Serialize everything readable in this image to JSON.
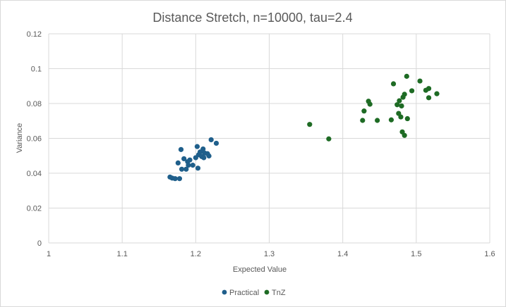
{
  "chart_data": {
    "type": "scatter",
    "title": "Distance Stretch, n=10000, tau=2.4",
    "xlabel": "Expected Value",
    "ylabel": "Variance",
    "xlim": [
      1,
      1.6
    ],
    "ylim": [
      0,
      0.12
    ],
    "x_ticks": [
      "1",
      "1.1",
      "1.2",
      "1.3",
      "1.4",
      "1.5",
      "1.6"
    ],
    "y_ticks": [
      "0",
      "0.02",
      "0.04",
      "0.06",
      "0.08",
      "0.1",
      "0.12"
    ],
    "grid": true,
    "legend_position": "bottom",
    "series": [
      {
        "name": "Practical",
        "color": "#1f5f8b",
        "points": [
          [
            1.165,
            0.0378
          ],
          [
            1.168,
            0.0372
          ],
          [
            1.172,
            0.0369
          ],
          [
            1.178,
            0.0369
          ],
          [
            1.176,
            0.0459
          ],
          [
            1.18,
            0.0536
          ],
          [
            1.181,
            0.0423
          ],
          [
            1.184,
            0.0483
          ],
          [
            1.187,
            0.0423
          ],
          [
            1.189,
            0.0466
          ],
          [
            1.19,
            0.0446
          ],
          [
            1.192,
            0.0476
          ],
          [
            1.196,
            0.0446
          ],
          [
            1.2,
            0.0489
          ],
          [
            1.202,
            0.0553
          ],
          [
            1.203,
            0.0429
          ],
          [
            1.204,
            0.0506
          ],
          [
            1.206,
            0.0522
          ],
          [
            1.208,
            0.0496
          ],
          [
            1.21,
            0.0539
          ],
          [
            1.211,
            0.0489
          ],
          [
            1.212,
            0.0516
          ],
          [
            1.216,
            0.0512
          ],
          [
            1.218,
            0.0499
          ],
          [
            1.221,
            0.0592
          ],
          [
            1.228,
            0.0572
          ]
        ]
      },
      {
        "name": "TnZ",
        "color": "#1e6b24",
        "points": [
          [
            1.355,
            0.068
          ],
          [
            1.381,
            0.0597
          ],
          [
            1.427,
            0.0703
          ],
          [
            1.429,
            0.0757
          ],
          [
            1.435,
            0.0813
          ],
          [
            1.437,
            0.0796
          ],
          [
            1.447,
            0.0703
          ],
          [
            1.466,
            0.0706
          ],
          [
            1.469,
            0.0913
          ],
          [
            1.474,
            0.0793
          ],
          [
            1.476,
            0.0743
          ],
          [
            1.477,
            0.0816
          ],
          [
            1.479,
            0.0723
          ],
          [
            1.48,
            0.0786
          ],
          [
            1.481,
            0.0637
          ],
          [
            1.482,
            0.0836
          ],
          [
            1.484,
            0.0853
          ],
          [
            1.484,
            0.0617
          ],
          [
            1.487,
            0.0956
          ],
          [
            1.488,
            0.0713
          ],
          [
            1.494,
            0.0873
          ],
          [
            1.505,
            0.0929
          ],
          [
            1.513,
            0.0876
          ],
          [
            1.517,
            0.0886
          ],
          [
            1.517,
            0.0833
          ],
          [
            1.528,
            0.0856
          ]
        ]
      }
    ]
  }
}
